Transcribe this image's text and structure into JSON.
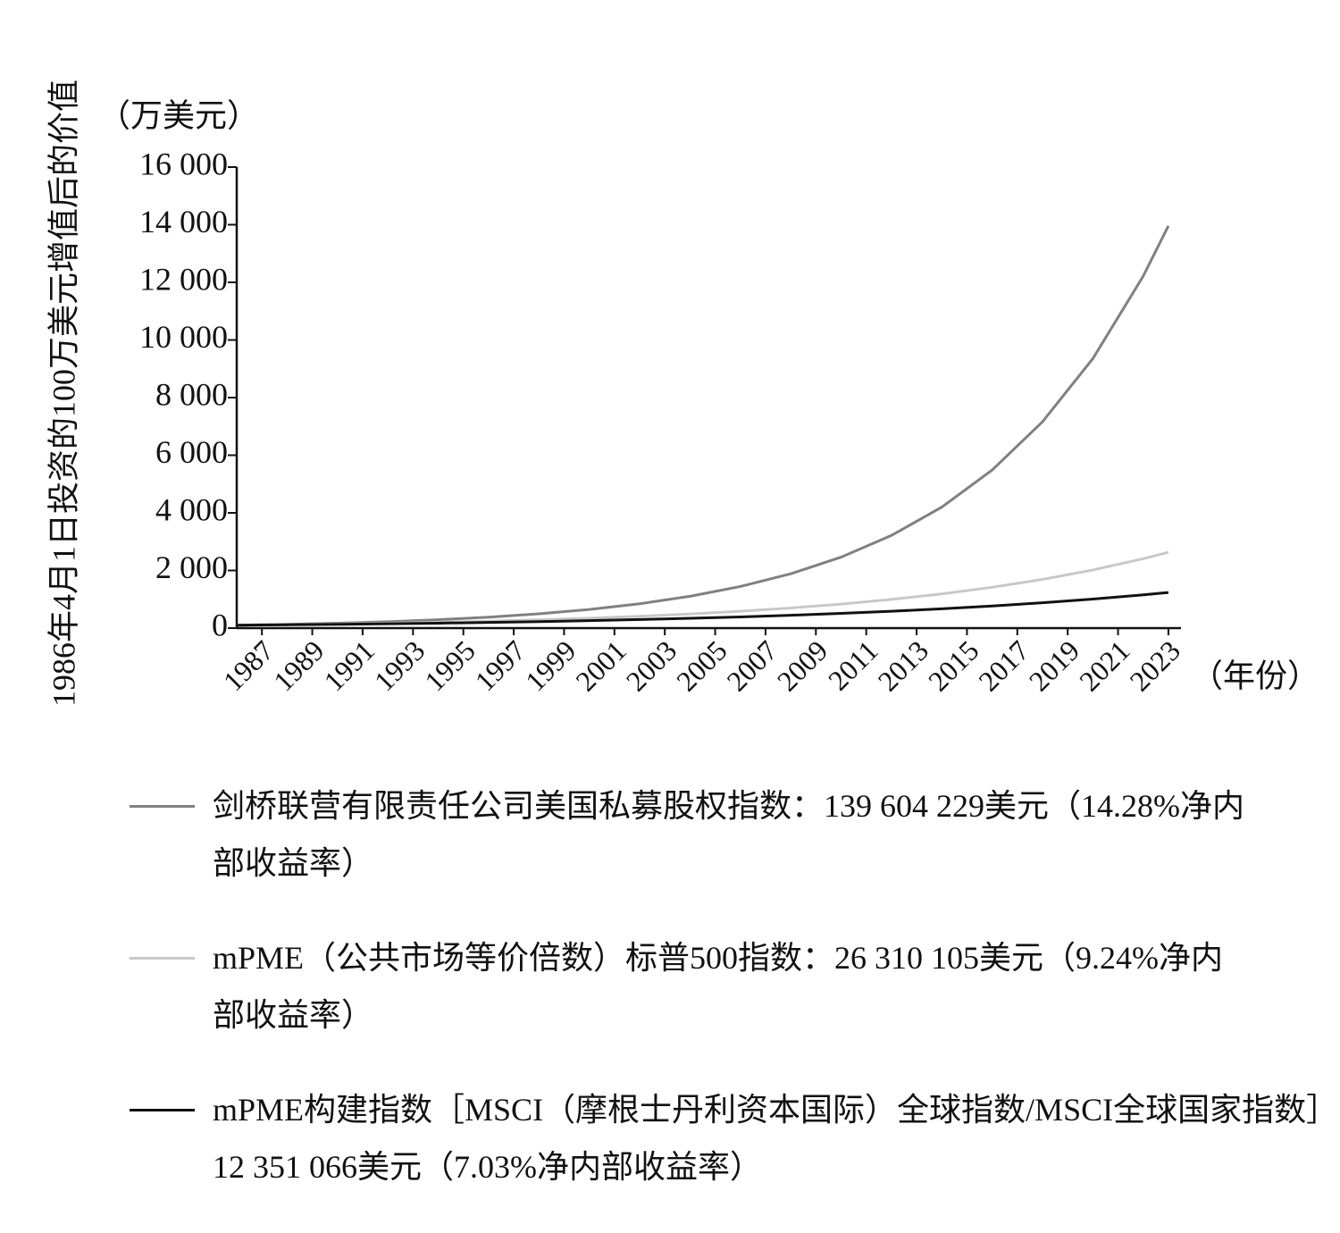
{
  "chart_data": {
    "type": "line",
    "ylabel": "1986年4月1日投资的100万美元增值后的价值",
    "yunit": "（万美元）",
    "xunit": "（年份）",
    "x": [
      1986,
      1988,
      1990,
      1992,
      1994,
      1996,
      1998,
      2000,
      2002,
      2004,
      2006,
      2008,
      2010,
      2012,
      2014,
      2016,
      2018,
      2020,
      2022,
      2023
    ],
    "series": [
      {
        "name": "剑桥联营有限责任公司美国私募股权指数：139 604 229美元（14.28%净内部收益率）",
        "color": "#808080",
        "values": [
          100,
          130.6,
          170.6,
          222.8,
          290.9,
          379.9,
          496.2,
          648.0,
          846.3,
          1105.2,
          1443.4,
          1885.0,
          2461.9,
          3215.2,
          4199,
          5484,
          7162,
          9353,
          12215,
          13960
        ]
      },
      {
        "name": "mPME（公共市场等价倍数）标普500指数：26 310 105美元（9.24%净内部收益率）",
        "color": "#c8c8c8",
        "values": [
          100,
          119.3,
          142.4,
          169.9,
          202.8,
          242.0,
          288.8,
          344.6,
          411.2,
          490.7,
          585.6,
          698.8,
          833.9,
          995.1,
          1187.5,
          1417,
          1691,
          2018,
          2409,
          2631
        ]
      },
      {
        "name": "mPME构建指数［MSCI（摩根士丹利资本国际）全球指数/MSCI全球国家指数］12 351 066美元（7.03%净内部收益率）",
        "color": "#111111",
        "values": [
          100,
          114.6,
          131.3,
          150.4,
          172.3,
          197.4,
          226.1,
          259.0,
          296.7,
          339.9,
          389.4,
          446.1,
          511.0,
          585.4,
          670.6,
          768.2,
          880.0,
          1008,
          1155,
          1235
        ]
      }
    ],
    "xlim": [
      1986,
      2023.5
    ],
    "xticks": [
      1987,
      1989,
      1991,
      1993,
      1995,
      1997,
      1999,
      2001,
      2003,
      2005,
      2007,
      2009,
      2011,
      2013,
      2015,
      2017,
      2019,
      2021,
      2023
    ],
    "ylim": [
      0,
      16000
    ],
    "yticks": [
      0,
      {
        "value": 2000,
        "label": "2 000"
      },
      {
        "value": 4000,
        "label": "4 000"
      },
      {
        "value": 6000,
        "label": "6 000"
      },
      {
        "value": 8000,
        "label": "8 000"
      },
      {
        "value": 10000,
        "label": "10 000"
      },
      {
        "value": 12000,
        "label": "12 000"
      },
      {
        "value": 14000,
        "label": "14 000"
      },
      {
        "value": 16000,
        "label": "16 000"
      }
    ]
  }
}
